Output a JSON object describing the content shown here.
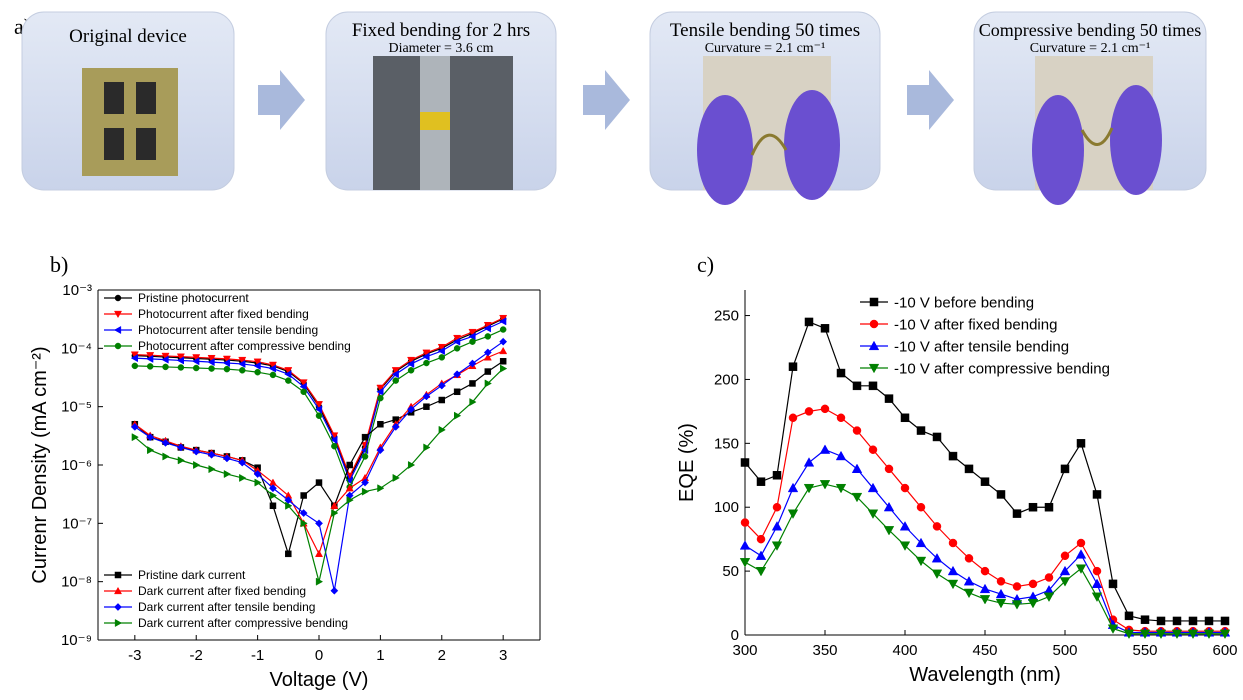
{
  "panel_a": {
    "label": "a)",
    "steps": [
      {
        "title": "Original device"
      },
      {
        "title": "Fixed bending for 2 hrs",
        "subtitle": "Diameter = 3.6 cm"
      },
      {
        "title": "Tensile bending 50 times",
        "subtitle": "Curvature = 2.1 cm⁻¹"
      },
      {
        "title": "Compressive  bending 50 times",
        "subtitle": "Curvature = 2.1 cm⁻¹"
      }
    ]
  },
  "chart_data": [
    {
      "type": "line",
      "panel_label": "b)",
      "log_y": true,
      "x_label": "Voltage (V)",
      "y_label": "Currenr Density (mA cm⁻²)",
      "xlim": [
        -3.6,
        3.6
      ],
      "xticks": [
        -3,
        -2,
        -1,
        0,
        1,
        2,
        3
      ],
      "ylim": [
        1e-09,
        0.001
      ],
      "yticks": [
        {
          "value": 1e-09,
          "label": "10⁻⁹"
        },
        {
          "value": 1e-08,
          "label": "10⁻⁸"
        },
        {
          "value": 1e-07,
          "label": "10⁻⁷"
        },
        {
          "value": 1e-06,
          "label": "10⁻⁶"
        },
        {
          "value": 1e-05,
          "label": "10⁻⁵"
        },
        {
          "value": 0.0001,
          "label": "10⁻⁴"
        },
        {
          "value": 0.001,
          "label": "10⁻³"
        }
      ],
      "x": [
        -3,
        -2.75,
        -2.5,
        -2.25,
        -2,
        -1.75,
        -1.5,
        -1.25,
        -1,
        -0.75,
        -0.5,
        -0.25,
        0,
        0.25,
        0.5,
        0.75,
        1,
        1.25,
        1.5,
        1.75,
        2,
        2.25,
        2.5,
        2.75,
        3
      ],
      "series": [
        {
          "name": "Pristine photocurrent",
          "color": "#000000",
          "marker": "circle",
          "values": [
            7.5e-05,
            7.3e-05,
            7.1e-05,
            6.9e-05,
            6.7e-05,
            6.5e-05,
            6.3e-05,
            6e-05,
            5.6e-05,
            5e-05,
            4e-05,
            2.5e-05,
            1e-05,
            3e-06,
            6e-07,
            2e-06,
            2e-05,
            4e-05,
            6e-05,
            8e-05,
            0.0001,
            0.00014,
            0.00018,
            0.00024,
            0.00032
          ]
        },
        {
          "name": "Photocurrent after fixed bending",
          "color": "#ff0000",
          "marker": "triangle-down",
          "values": [
            7.8e-05,
            7.6e-05,
            7.4e-05,
            7.2e-05,
            7e-05,
            6.8e-05,
            6.6e-05,
            6.3e-05,
            5.9e-05,
            5.2e-05,
            4.2e-05,
            2.6e-05,
            1.1e-05,
            3.2e-06,
            6.5e-07,
            2.2e-06,
            2.1e-05,
            4.2e-05,
            6.3e-05,
            8.4e-05,
            0.000105,
            0.00015,
            0.00019,
            0.00025,
            0.00033
          ]
        },
        {
          "name": "Photocurrent after tensile bending",
          "color": "#0000ff",
          "marker": "triangle-left",
          "values": [
            6.8e-05,
            6.6e-05,
            6.4e-05,
            6.2e-05,
            6e-05,
            5.8e-05,
            5.6e-05,
            5.4e-05,
            5e-05,
            4.5e-05,
            3.6e-05,
            2.2e-05,
            9e-06,
            2.7e-06,
            5.4e-07,
            1.8e-06,
            1.8e-05,
            3.6e-05,
            5.4e-05,
            7.2e-05,
            9e-05,
            0.00013,
            0.00016,
            0.00022,
            0.00029
          ]
        },
        {
          "name": "Photocurrent after compressive bending",
          "color": "#008000",
          "marker": "circle",
          "values": [
            5e-05,
            4.9e-05,
            4.8e-05,
            4.7e-05,
            4.6e-05,
            4.5e-05,
            4.4e-05,
            4.2e-05,
            3.9e-05,
            3.5e-05,
            2.8e-05,
            1.8e-05,
            7e-06,
            2.1e-06,
            4.2e-07,
            1.4e-06,
            1.4e-05,
            2.8e-05,
            4.2e-05,
            5.6e-05,
            7e-05,
            0.0001,
            0.00013,
            0.00016,
            0.00021
          ]
        },
        {
          "name": "Pristine dark current",
          "color": "#000000",
          "marker": "square",
          "values": [
            5e-06,
            3e-06,
            2.5e-06,
            2e-06,
            1.8e-06,
            1.6e-06,
            1.4e-06,
            1.2e-06,
            9e-07,
            2e-07,
            3e-08,
            3e-07,
            5e-07,
            2e-07,
            1e-06,
            3e-06,
            5e-06,
            6e-06,
            8e-06,
            1e-05,
            1.3e-05,
            1.8e-05,
            2.5e-05,
            4e-05,
            6e-05
          ]
        },
        {
          "name": "Dark current after fixed bending",
          "color": "#ff0000",
          "marker": "triangle-up",
          "values": [
            5e-06,
            3.2e-06,
            2.6e-06,
            2.1e-06,
            1.8e-06,
            1.6e-06,
            1.4e-06,
            1.2e-06,
            8e-07,
            5e-07,
            3e-07,
            1e-07,
            3e-08,
            2e-07,
            4e-07,
            6e-07,
            2e-06,
            5e-06,
            1e-05,
            1.6e-05,
            2.5e-05,
            3.5e-05,
            5e-05,
            7e-05,
            9e-05
          ]
        },
        {
          "name": "Dark current after tensile bending",
          "color": "#0000ff",
          "marker": "diamond",
          "values": [
            4.5e-06,
            3e-06,
            2.4e-06,
            2e-06,
            1.7e-06,
            1.5e-06,
            1.3e-06,
            1.1e-06,
            7e-07,
            4e-07,
            2.5e-07,
            1.5e-07,
            1e-07,
            7e-09,
            3e-07,
            5e-07,
            1.8e-06,
            4.5e-06,
            9e-06,
            1.5e-05,
            2.3e-05,
            3.6e-05,
            5.5e-05,
            8.5e-05,
            0.00013
          ]
        },
        {
          "name": "Dark current after compressive bending",
          "color": "#008000",
          "marker": "triangle-right",
          "values": [
            3e-06,
            1.8e-06,
            1.4e-06,
            1.2e-06,
            1e-06,
            8.5e-07,
            7e-07,
            6e-07,
            5e-07,
            3e-07,
            2e-07,
            1e-07,
            1e-08,
            1.5e-07,
            2.5e-07,
            3.5e-07,
            4e-07,
            6e-07,
            1e-06,
            2e-06,
            4e-06,
            7e-06,
            1.2e-05,
            2.5e-05,
            4.5e-05
          ]
        }
      ]
    },
    {
      "type": "line",
      "panel_label": "c)",
      "log_y": false,
      "x_label": "Wavelength (nm)",
      "y_label": "EQE (%)",
      "xlim": [
        300,
        600
      ],
      "xticks": [
        300,
        350,
        400,
        450,
        500,
        550,
        600
      ],
      "ylim": [
        0,
        270
      ],
      "yticks": [
        0,
        50,
        100,
        150,
        200,
        250
      ],
      "x": [
        300,
        310,
        320,
        330,
        340,
        350,
        360,
        370,
        380,
        390,
        400,
        410,
        420,
        430,
        440,
        450,
        460,
        470,
        480,
        490,
        500,
        510,
        520,
        530,
        540,
        550,
        560,
        570,
        580,
        590,
        600
      ],
      "series": [
        {
          "name": "-10 V before bending",
          "color": "#000000",
          "marker": "square",
          "values": [
            135,
            120,
            125,
            210,
            245,
            240,
            205,
            195,
            195,
            185,
            170,
            160,
            155,
            140,
            130,
            120,
            110,
            95,
            100,
            100,
            130,
            150,
            110,
            40,
            15,
            12,
            11,
            11,
            11,
            11,
            11
          ]
        },
        {
          "name": "-10 V after fixed bending",
          "color": "#ff0000",
          "marker": "circle",
          "values": [
            88,
            75,
            100,
            170,
            175,
            177,
            170,
            160,
            145,
            130,
            115,
            100,
            85,
            72,
            60,
            50,
            42,
            38,
            40,
            45,
            62,
            72,
            50,
            12,
            4,
            3,
            3,
            3,
            3,
            3,
            3
          ]
        },
        {
          "name": "-10 V after tensile bending",
          "color": "#0000ff",
          "marker": "triangle-up",
          "values": [
            70,
            62,
            85,
            115,
            135,
            145,
            140,
            130,
            115,
            100,
            85,
            72,
            60,
            50,
            42,
            36,
            32,
            28,
            30,
            35,
            50,
            63,
            40,
            8,
            2,
            2,
            2,
            2,
            2,
            2,
            2
          ]
        },
        {
          "name": " -10 V after compressive bending",
          "color": "#008000",
          "marker": "triangle-down",
          "values": [
            57,
            50,
            70,
            95,
            115,
            118,
            115,
            108,
            95,
            82,
            70,
            58,
            48,
            40,
            33,
            28,
            25,
            24,
            25,
            30,
            42,
            52,
            30,
            5,
            1,
            1,
            1,
            1,
            1,
            1,
            1
          ]
        }
      ]
    }
  ]
}
